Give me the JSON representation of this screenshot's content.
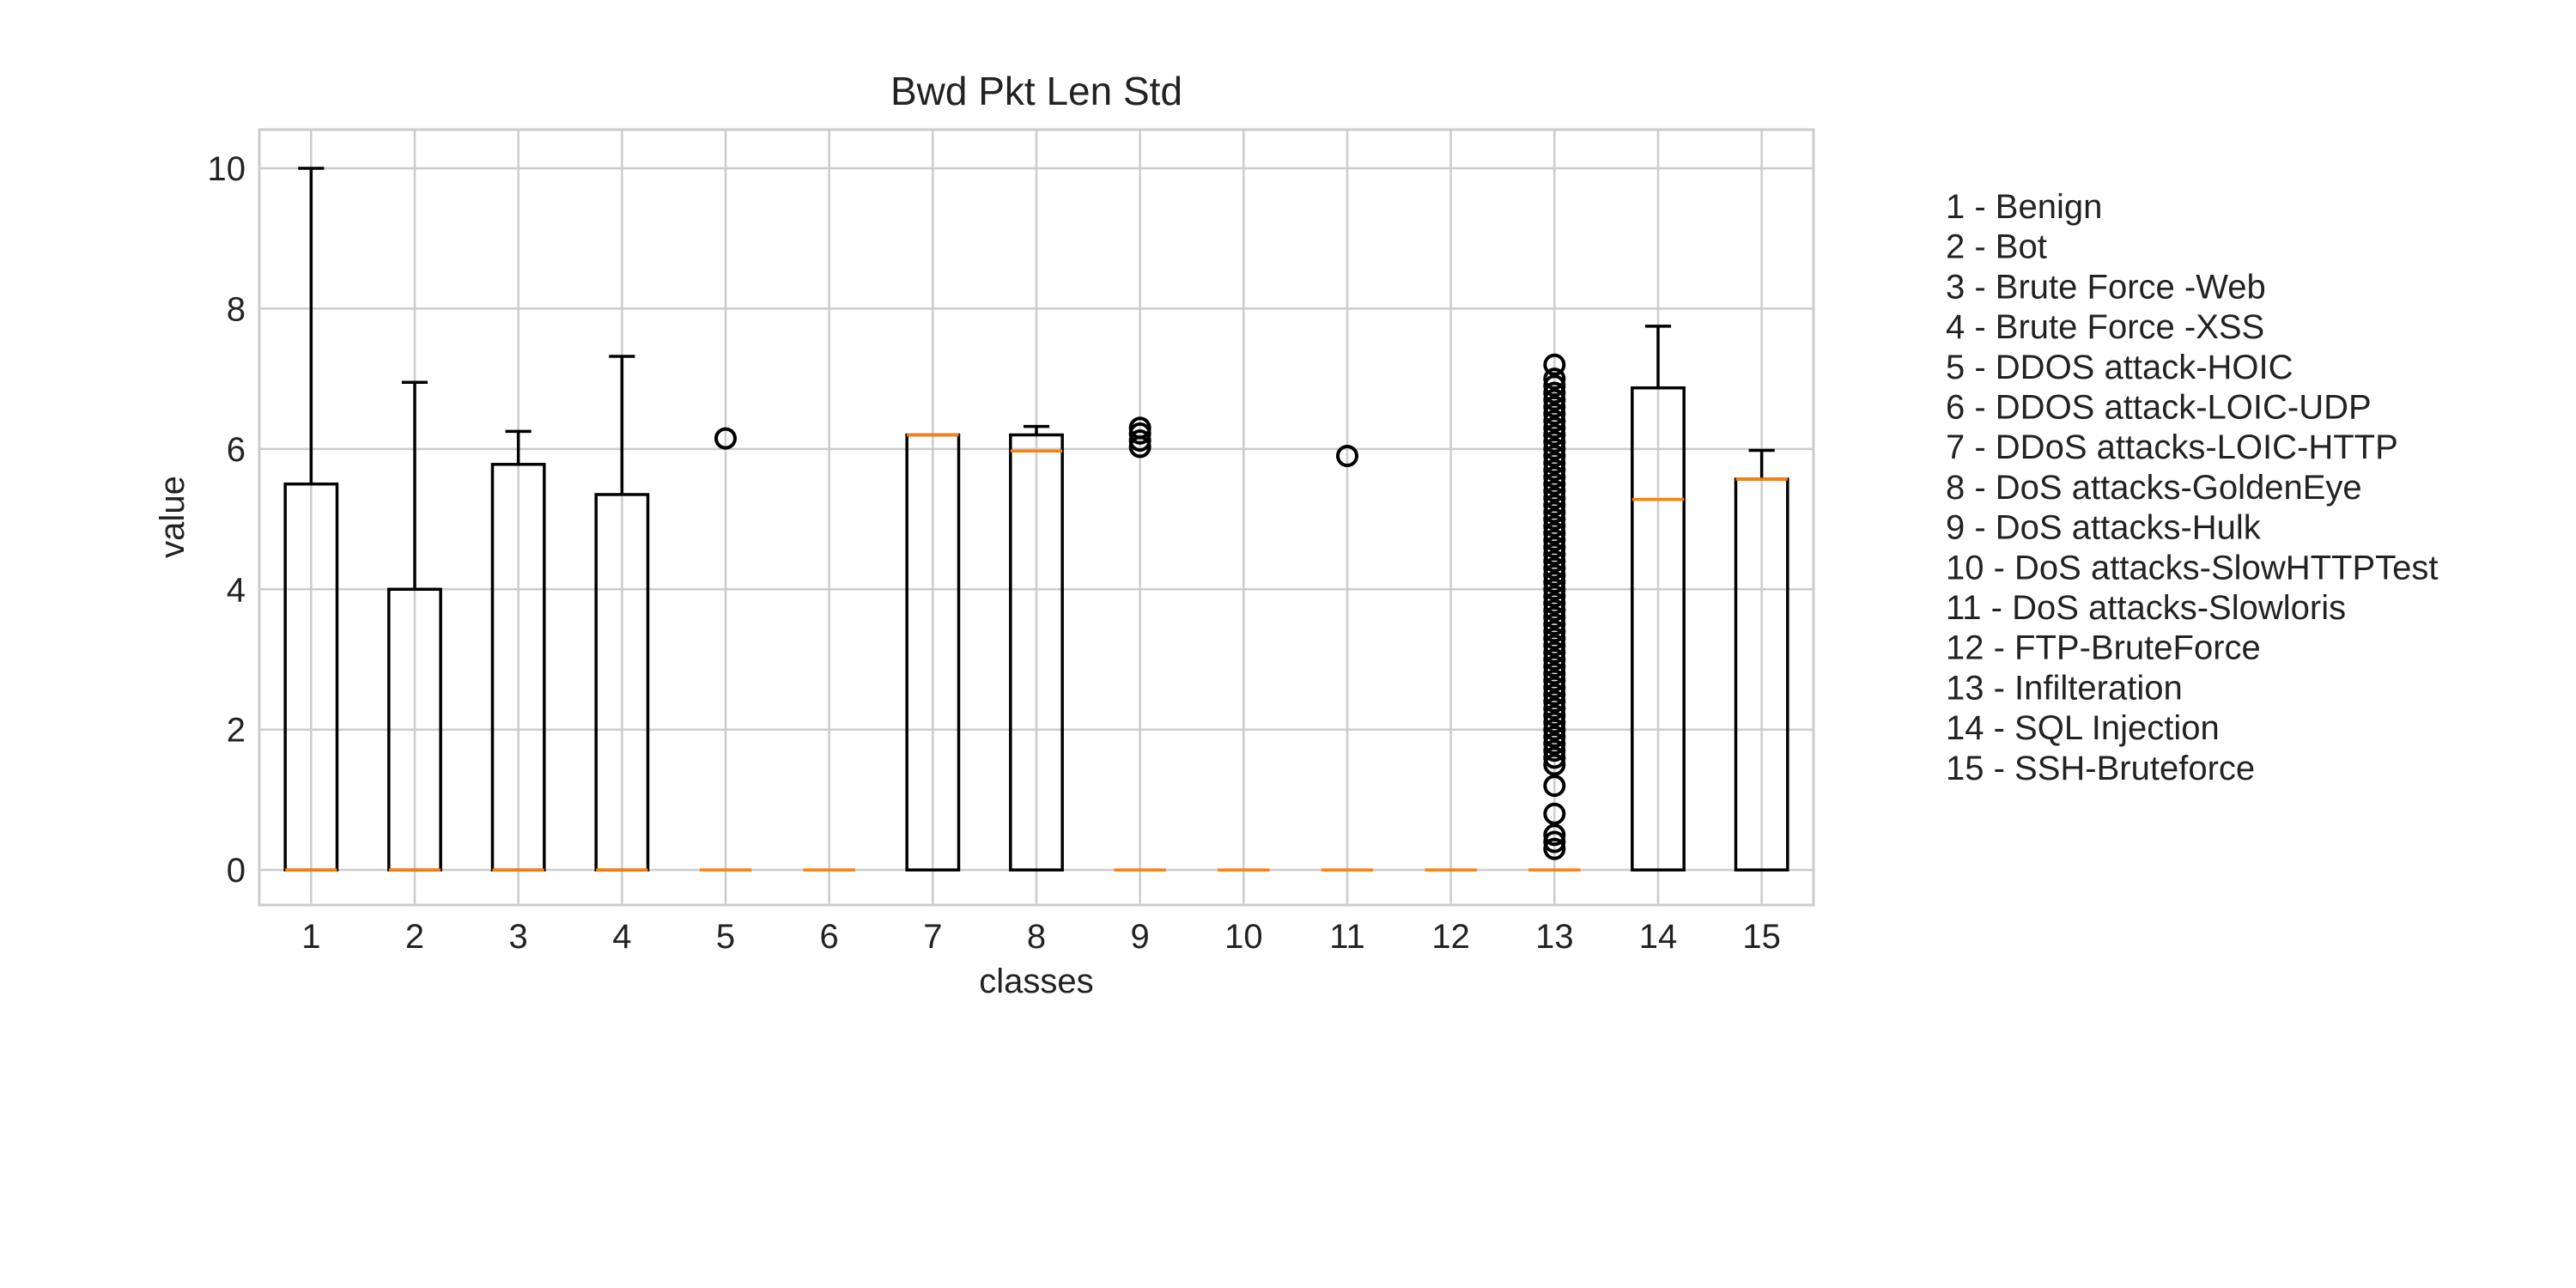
{
  "chart_data": {
    "type": "boxplot",
    "title": "Bwd Pkt Len Std",
    "xlabel": "classes",
    "ylabel": "value",
    "ylim": [
      -0.5,
      10.55
    ],
    "yticks": [
      0,
      2,
      4,
      6,
      8,
      10
    ],
    "grid": true,
    "categories": [
      "1",
      "2",
      "3",
      "4",
      "5",
      "6",
      "7",
      "8",
      "9",
      "10",
      "11",
      "12",
      "13",
      "14",
      "15"
    ],
    "boxes": [
      {
        "q1": 0,
        "median": 0,
        "q3": 5.5,
        "whisker_low": 0,
        "whisker_high": 10.0,
        "outliers": []
      },
      {
        "q1": 0,
        "median": 0,
        "q3": 4.0,
        "whisker_low": 0,
        "whisker_high": 6.95,
        "outliers": []
      },
      {
        "q1": 0,
        "median": 0,
        "q3": 5.78,
        "whisker_low": 0,
        "whisker_high": 6.25,
        "outliers": []
      },
      {
        "q1": 0,
        "median": 0,
        "q3": 5.35,
        "whisker_low": 0,
        "whisker_high": 7.32,
        "outliers": []
      },
      {
        "q1": 0,
        "median": 0,
        "q3": 0,
        "whisker_low": 0,
        "whisker_high": 0,
        "outliers": [
          6.15
        ]
      },
      {
        "q1": 0,
        "median": 0,
        "q3": 0,
        "whisker_low": 0,
        "whisker_high": 0,
        "outliers": []
      },
      {
        "q1": 0,
        "median": 6.2,
        "q3": 6.2,
        "whisker_low": 0,
        "whisker_high": 6.2,
        "outliers": []
      },
      {
        "q1": 0,
        "median": 5.97,
        "q3": 6.2,
        "whisker_low": 0,
        "whisker_high": 6.32,
        "outliers": []
      },
      {
        "q1": 0,
        "median": 0,
        "q3": 0,
        "whisker_low": 0,
        "whisker_high": 0,
        "outliers": [
          6.03,
          6.12,
          6.22,
          6.3
        ]
      },
      {
        "q1": 0,
        "median": 0,
        "q3": 0,
        "whisker_low": 0,
        "whisker_high": 0,
        "outliers": []
      },
      {
        "q1": 0,
        "median": 0,
        "q3": 0,
        "whisker_low": 0,
        "whisker_high": 0,
        "outliers": [
          5.9
        ]
      },
      {
        "q1": 0,
        "median": 0,
        "q3": 0,
        "whisker_low": 0,
        "whisker_high": 0,
        "outliers": []
      },
      {
        "q1": 0,
        "median": 0,
        "q3": 0,
        "whisker_low": 0,
        "whisker_high": 0,
        "outliers": [
          0.3,
          0.4,
          0.5,
          0.8,
          1.2,
          1.5,
          1.6,
          1.7,
          1.8,
          1.9,
          2.0,
          2.1,
          2.2,
          2.3,
          2.4,
          2.5,
          2.6,
          2.7,
          2.8,
          2.9,
          3.0,
          3.1,
          3.2,
          3.3,
          3.4,
          3.5,
          3.6,
          3.7,
          3.8,
          3.9,
          4.0,
          4.1,
          4.2,
          4.3,
          4.4,
          4.5,
          4.6,
          4.7,
          4.8,
          4.9,
          5.0,
          5.1,
          5.2,
          5.3,
          5.4,
          5.5,
          5.6,
          5.7,
          5.8,
          5.9,
          6.0,
          6.1,
          6.2,
          6.3,
          6.4,
          6.5,
          6.6,
          6.7,
          6.8,
          6.9,
          7.0,
          7.2
        ]
      },
      {
        "q1": 0,
        "median": 5.28,
        "q3": 6.87,
        "whisker_low": 0,
        "whisker_high": 7.75,
        "outliers": []
      },
      {
        "q1": 0,
        "median": 5.57,
        "q3": 5.57,
        "whisker_low": 0,
        "whisker_high": 5.98,
        "outliers": []
      }
    ],
    "legend_text": [
      "1 - Benign",
      "2 - Bot",
      "3 - Brute Force -Web",
      "4 - Brute Force -XSS",
      "5 - DDOS attack-HOIC",
      "6 - DDOS attack-LOIC-UDP",
      "7 - DDoS attacks-LOIC-HTTP",
      "8 - DoS attacks-GoldenEye",
      "9 - DoS attacks-Hulk",
      "10 - DoS attacks-SlowHTTPTest",
      "11 - DoS attacks-Slowloris",
      "12 - FTP-BruteForce",
      "13 - Infilteration",
      "14 - SQL Injection",
      "15 - SSH-Bruteforce"
    ],
    "legend_position": "right",
    "colors": {
      "box": "#000000",
      "median": "#ff7f0e",
      "grid": "#cccccc",
      "frame": "#cccccc"
    }
  }
}
